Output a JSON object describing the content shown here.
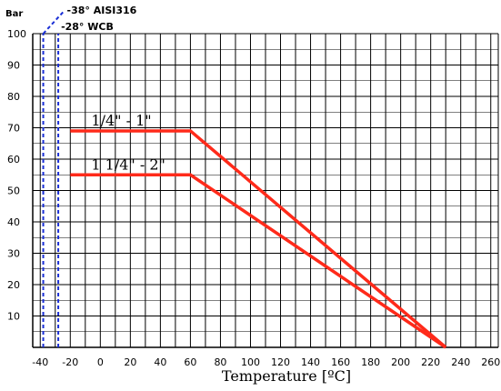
{
  "chart_data": {
    "type": "line",
    "ylabel": "Bar",
    "xlabel": "Temperature [ºC]",
    "xlim": [
      -45,
      265
    ],
    "ylim": [
      0,
      100
    ],
    "x_ticks": [
      -40,
      -20,
      0,
      20,
      40,
      60,
      80,
      100,
      120,
      140,
      160,
      180,
      200,
      220,
      240,
      260
    ],
    "y_ticks": [
      10,
      20,
      30,
      40,
      50,
      60,
      70,
      80,
      90,
      100
    ],
    "grid": true,
    "series": [
      {
        "name": "1/4\" - 1\"",
        "color": "#ff2a1a",
        "points": [
          [
            -20,
            69
          ],
          [
            60,
            69
          ],
          [
            230,
            0
          ]
        ]
      },
      {
        "name": "1 1/4\" - 2\"",
        "color": "#ff2a1a",
        "points": [
          [
            -20,
            55
          ],
          [
            60,
            55
          ],
          [
            230,
            0
          ]
        ]
      }
    ],
    "annotations": [
      {
        "label": "-38° AISI316",
        "x": -38,
        "color": "#1a2fd6"
      },
      {
        "label": "-28° WCB",
        "x": -28,
        "color": "#1a2fd6"
      }
    ]
  }
}
